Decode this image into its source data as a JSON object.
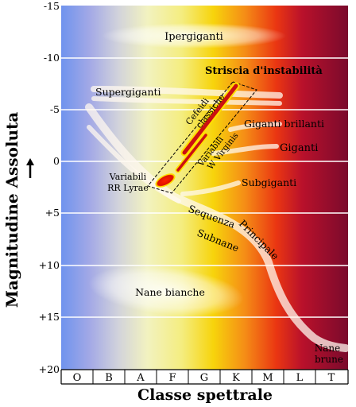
{
  "axes": {
    "y_title": "Magnitudine Assoluta",
    "x_title": "Classe spettrale",
    "y_ticks": [
      "-15",
      "-10",
      "-5",
      "0",
      "+5",
      "+10",
      "+15",
      "+20"
    ],
    "x_classes": [
      "O",
      "B",
      "A",
      "F",
      "G",
      "K",
      "M",
      "L",
      "T"
    ]
  },
  "regions": {
    "hypergiants": "Ipergiganti",
    "supergiants": "Supergiganti",
    "bright_giants": "Giganti brillanti",
    "giants": "Giganti",
    "subgiants": "Subgiganti",
    "main_sequence_1": "Sequenza",
    "main_sequence_2": "Principale",
    "subdwarfs": "Subnane",
    "white_dwarfs": "Nane bianche",
    "brown_dwarfs_1": "Nane",
    "brown_dwarfs_2": "brune"
  },
  "instability": {
    "title": "Striscia d'instabilità",
    "cepheids_1": "Cefeidi",
    "cepheids_2": "classiche",
    "w_virginis_1": "Variabili",
    "w_virginis_2": "W Virginis",
    "rr_lyrae_1": "Variabili",
    "rr_lyrae_2": "RR Lyrae"
  },
  "colors": {
    "o_class": "#6f93ee",
    "a_class": "#f2f2c0",
    "g_class": "#f7d40c",
    "k_class": "#ea3612",
    "t_class": "#7a0a2c",
    "strip": "#cc1111"
  }
}
